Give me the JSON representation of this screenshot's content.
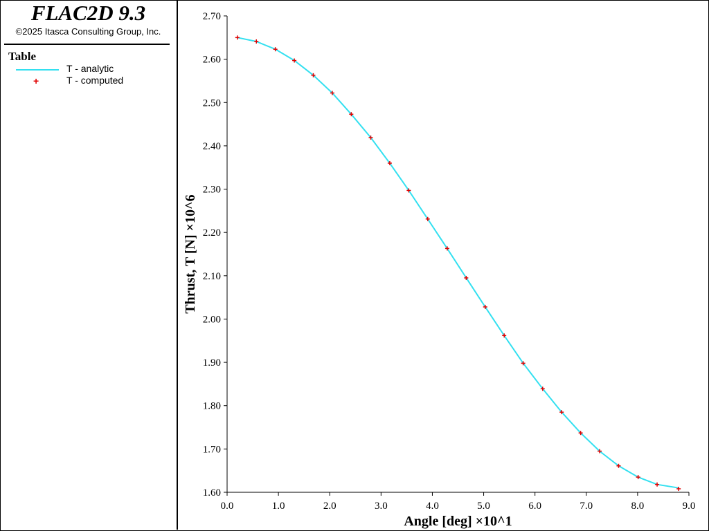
{
  "app": {
    "title": "FLAC2D 9.3",
    "copyright": "©2025 Itasca Consulting Group, Inc."
  },
  "legend": {
    "heading": "Table",
    "entries": [
      {
        "label": "T - analytic",
        "kind": "line",
        "color": "#33e0f0"
      },
      {
        "label": "T - computed",
        "kind": "marker",
        "color": "#e00000"
      }
    ]
  },
  "chart_data": {
    "type": "line",
    "xlabel": "Angle [deg] ×10^1",
    "ylabel": "Thrust, T [N] ×10^6",
    "xlim": [
      0,
      9.0
    ],
    "ylim": [
      1.6,
      2.7
    ],
    "xticks": [
      "0.0",
      "1.0",
      "2.0",
      "3.0",
      "4.0",
      "5.0",
      "6.0",
      "7.0",
      "8.0",
      "9.0"
    ],
    "yticks": [
      "1.60",
      "1.70",
      "1.80",
      "1.90",
      "2.00",
      "2.10",
      "2.20",
      "2.30",
      "2.40",
      "2.50",
      "2.60",
      "2.70"
    ],
    "grid": false,
    "series": [
      {
        "name": "T - analytic",
        "style": "line",
        "color": "#33e0f0",
        "x": [
          0.2,
          0.57,
          0.94,
          1.31,
          1.68,
          2.05,
          2.42,
          2.8,
          3.17,
          3.54,
          3.91,
          4.29,
          4.66,
          5.03,
          5.4,
          5.77,
          6.15,
          6.52,
          6.89,
          7.26,
          7.63,
          8.01,
          8.38,
          8.8
        ],
        "y": [
          2.65,
          2.641,
          2.623,
          2.597,
          2.563,
          2.522,
          2.473,
          2.419,
          2.36,
          2.297,
          2.231,
          2.163,
          2.095,
          2.028,
          1.962,
          1.898,
          1.839,
          1.785,
          1.737,
          1.695,
          1.661,
          1.635,
          1.618,
          1.61
        ]
      },
      {
        "name": "T - computed",
        "style": "marker",
        "color": "#e00000",
        "x": [
          0.2,
          0.57,
          0.94,
          1.31,
          1.68,
          2.05,
          2.42,
          2.8,
          3.17,
          3.54,
          3.91,
          4.29,
          4.66,
          5.03,
          5.4,
          5.77,
          6.15,
          6.52,
          6.89,
          7.26,
          7.63,
          8.01,
          8.38,
          8.8
        ],
        "y": [
          2.65,
          2.641,
          2.623,
          2.597,
          2.563,
          2.522,
          2.473,
          2.419,
          2.36,
          2.297,
          2.231,
          2.163,
          2.095,
          2.028,
          1.962,
          1.898,
          1.839,
          1.785,
          1.737,
          1.695,
          1.661,
          1.635,
          1.618,
          1.608
        ]
      }
    ]
  }
}
